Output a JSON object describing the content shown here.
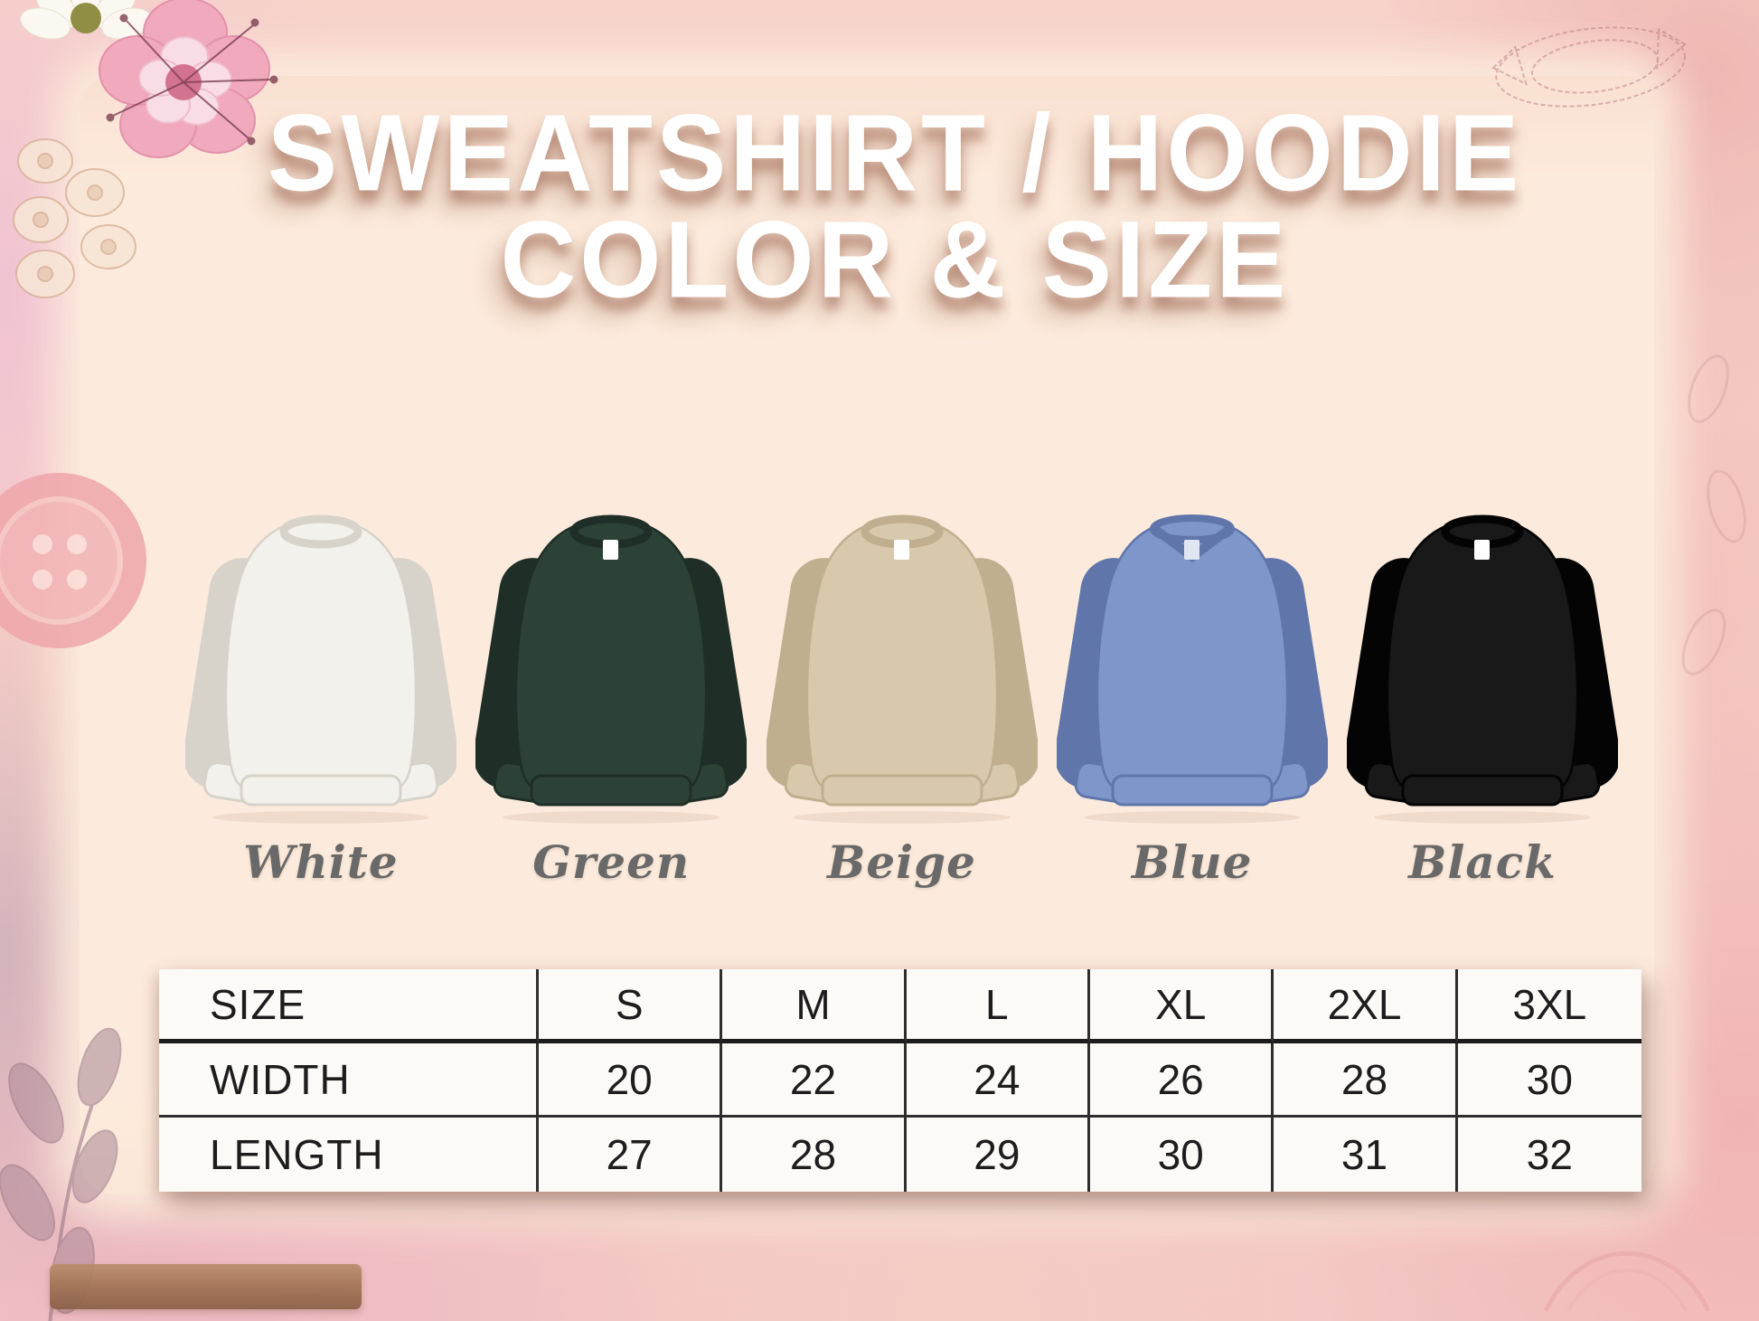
{
  "title": {
    "line1": "SWEATSHIRT / HOODIE",
    "line2": "COLOR & SIZE"
  },
  "products": [
    {
      "name": "White",
      "fill": "#f3f1ec",
      "shade": "#d7d3ca",
      "tag": "",
      "neck": "crew"
    },
    {
      "name": "Green",
      "fill": "#2d4237",
      "shade": "#1f2f28",
      "tag": "#ffffff",
      "neck": "crew"
    },
    {
      "name": "Beige",
      "fill": "#d8c9ac",
      "shade": "#c0af8f",
      "tag": "#ffffff",
      "neck": "crew"
    },
    {
      "name": "Blue",
      "fill": "#7e96c9",
      "shade": "#6076ab",
      "tag": "#dfe6f2",
      "neck": "v"
    },
    {
      "name": "Black",
      "fill": "#191919",
      "shade": "#040404",
      "tag": "#ffffff",
      "neck": "crew"
    }
  ],
  "size_table": {
    "corner_label": "SIZE",
    "columns": [
      "S",
      "M",
      "L",
      "XL",
      "2XL",
      "3XL"
    ],
    "rows": [
      {
        "label": "WIDTH",
        "values": [
          "20",
          "22",
          "24",
          "26",
          "28",
          "30"
        ]
      },
      {
        "label": "LENGTH",
        "values": [
          "27",
          "28",
          "29",
          "30",
          "31",
          "32"
        ]
      }
    ]
  },
  "chart_data": {
    "type": "table",
    "title": "SWEATSHIRT / HOODIE COLOR & SIZE",
    "columns": [
      "SIZE",
      "S",
      "M",
      "L",
      "XL",
      "2XL",
      "3XL"
    ],
    "rows": [
      [
        "WIDTH",
        20,
        22,
        24,
        26,
        28,
        30
      ],
      [
        "LENGTH",
        27,
        28,
        29,
        30,
        31,
        32
      ]
    ],
    "color_options": [
      "White",
      "Green",
      "Beige",
      "Blue",
      "Black"
    ]
  },
  "palette": {
    "background_pink": "#f5c8c5",
    "panel_cream": "#fcebdc",
    "title_text": "#ffffff",
    "title_shadow": "#ad7c69",
    "label_gray": "#696969",
    "table_background": "#fbfaf6",
    "table_line": "#2e2e2e",
    "table_text": "#1d1d1d"
  }
}
